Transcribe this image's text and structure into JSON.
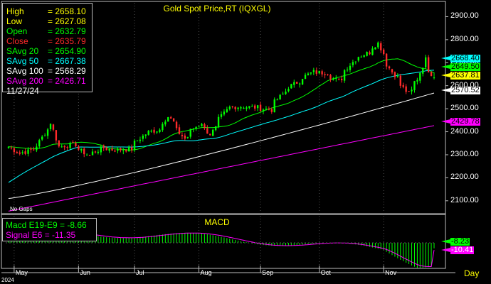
{
  "title": "Gold  Spot Price,RT  (IQXGL)",
  "legend": [
    {
      "label": "High",
      "value": "2658.10",
      "color": "#ffff00"
    },
    {
      "label": "Low",
      "value": "2627.08",
      "color": "#ffff00"
    },
    {
      "label": "Open",
      "value": "2632.79",
      "color": "#00ff00"
    },
    {
      "label": "Close",
      "value": "2635.79",
      "color": "#ff2a2a"
    },
    {
      "label": "SAvg  20",
      "value": "2654.90",
      "color": "#00ff00"
    },
    {
      "label": "SAvg  50",
      "value": "2667.38",
      "color": "#00ffff"
    },
    {
      "label": "SAvg  100",
      "value": "2568.29",
      "color": "#ffffff"
    },
    {
      "label": "SAvg  200",
      "value": "2426.71",
      "color": "#ff00ff"
    }
  ],
  "legend_date": "11/27/24",
  "price_ticks": [
    "2900.00",
    "2800.00",
    "2700.00",
    "2600.00",
    "2500.00",
    "2400.00",
    "2300.00",
    "2200.00",
    "2100.00"
  ],
  "price_tags": [
    {
      "text": "2668.40",
      "bg": "#00ffff",
      "fg": "#000000",
      "value": 2668.4
    },
    {
      "text": "2649.50",
      "bg": "#00ff00",
      "fg": "#000000",
      "value": 2649.5
    },
    {
      "text": "2637.81",
      "bg": "#ffff00",
      "fg": "#000000",
      "value": 2637.81
    },
    {
      "text": "2570.52",
      "bg": "#ffffff",
      "fg": "#000000",
      "value": 2570.52
    },
    {
      "text": "2429.78",
      "bg": "#ff00ff",
      "fg": "#000000",
      "value": 2429.78
    }
  ],
  "no_gaps": "No Gaps",
  "macd_title": "MACD",
  "macd_legend": [
    {
      "label": "Macd  E19-E9",
      "value": "-8.66",
      "color": "#00ff00"
    },
    {
      "label": "Signal  E6",
      "value": "-11.35",
      "color": "#ff00ff"
    }
  ],
  "macd_tags": [
    {
      "text": "-8.23",
      "bg": "#00ff00",
      "fg": "#000000"
    },
    {
      "text": "-10.41",
      "bg": "#ff00ff",
      "fg": "#ffffff"
    }
  ],
  "months": [
    "May",
    "Jun",
    "Jul",
    "Aug",
    "Sep",
    "Oct",
    "Nov"
  ],
  "year": "2024",
  "period": "Day",
  "colors": {
    "up": "#00ff00",
    "down": "#ff2a2a",
    "ma20": "#00ff00",
    "ma50": "#00ffff",
    "ma100": "#ffffff",
    "ma200": "#ff00ff",
    "grid": "#555555",
    "frame": "#bdbdbd"
  },
  "chart_data": {
    "type": "candlestick",
    "title": "Gold  Spot Price,RT  (IQXGL)",
    "ylim": [
      2050,
      2960
    ],
    "close_anchors": [
      [
        "2024-04-29",
        2335
      ],
      [
        "2024-05-03",
        2305
      ],
      [
        "2024-05-08",
        2315
      ],
      [
        "2024-05-13",
        2340
      ],
      [
        "2024-05-17",
        2410
      ],
      [
        "2024-05-20",
        2440
      ],
      [
        "2024-05-23",
        2335
      ],
      [
        "2024-05-31",
        2345
      ],
      [
        "2024-06-07",
        2295
      ],
      [
        "2024-06-14",
        2330
      ],
      [
        "2024-06-21",
        2320
      ],
      [
        "2024-06-28",
        2325
      ],
      [
        "2024-07-05",
        2390
      ],
      [
        "2024-07-12",
        2410
      ],
      [
        "2024-07-17",
        2465
      ],
      [
        "2024-07-25",
        2370
      ],
      [
        "2024-08-02",
        2440
      ],
      [
        "2024-08-07",
        2390
      ],
      [
        "2024-08-16",
        2505
      ],
      [
        "2024-08-23",
        2510
      ],
      [
        "2024-08-30",
        2505
      ],
      [
        "2024-09-06",
        2495
      ],
      [
        "2024-09-13",
        2575
      ],
      [
        "2024-09-20",
        2620
      ],
      [
        "2024-09-27",
        2660
      ],
      [
        "2024-10-04",
        2655
      ],
      [
        "2024-10-10",
        2620
      ],
      [
        "2024-10-18",
        2715
      ],
      [
        "2024-10-25",
        2745
      ],
      [
        "2024-10-30",
        2785
      ],
      [
        "2024-11-01",
        2740
      ],
      [
        "2024-11-06",
        2660
      ],
      [
        "2024-11-14",
        2565
      ],
      [
        "2024-11-19",
        2630
      ],
      [
        "2024-11-22",
        2715
      ],
      [
        "2024-11-27",
        2636
      ]
    ],
    "last_bar": {
      "date": "11/27/24",
      "open": 2632.79,
      "high": 2658.1,
      "low": 2627.08,
      "close": 2635.79
    },
    "moving_averages": [
      {
        "name": "SAvg  20",
        "period": 20,
        "last": 2654.9
      },
      {
        "name": "SAvg  50",
        "period": 50,
        "last": 2667.38
      },
      {
        "name": "SAvg  100",
        "period": 100,
        "last": 2568.29
      },
      {
        "name": "SAvg  200",
        "period": 200,
        "last": 2426.71
      }
    ],
    "ma_start_values": {
      "SAvg  50": 2180,
      "SAvg  100": 2110,
      "SAvg  200": 2055
    },
    "macd": {
      "macd": -8.66,
      "signal": -11.35,
      "fast": "E19",
      "slow": "E9",
      "signal_period": "E6"
    }
  }
}
